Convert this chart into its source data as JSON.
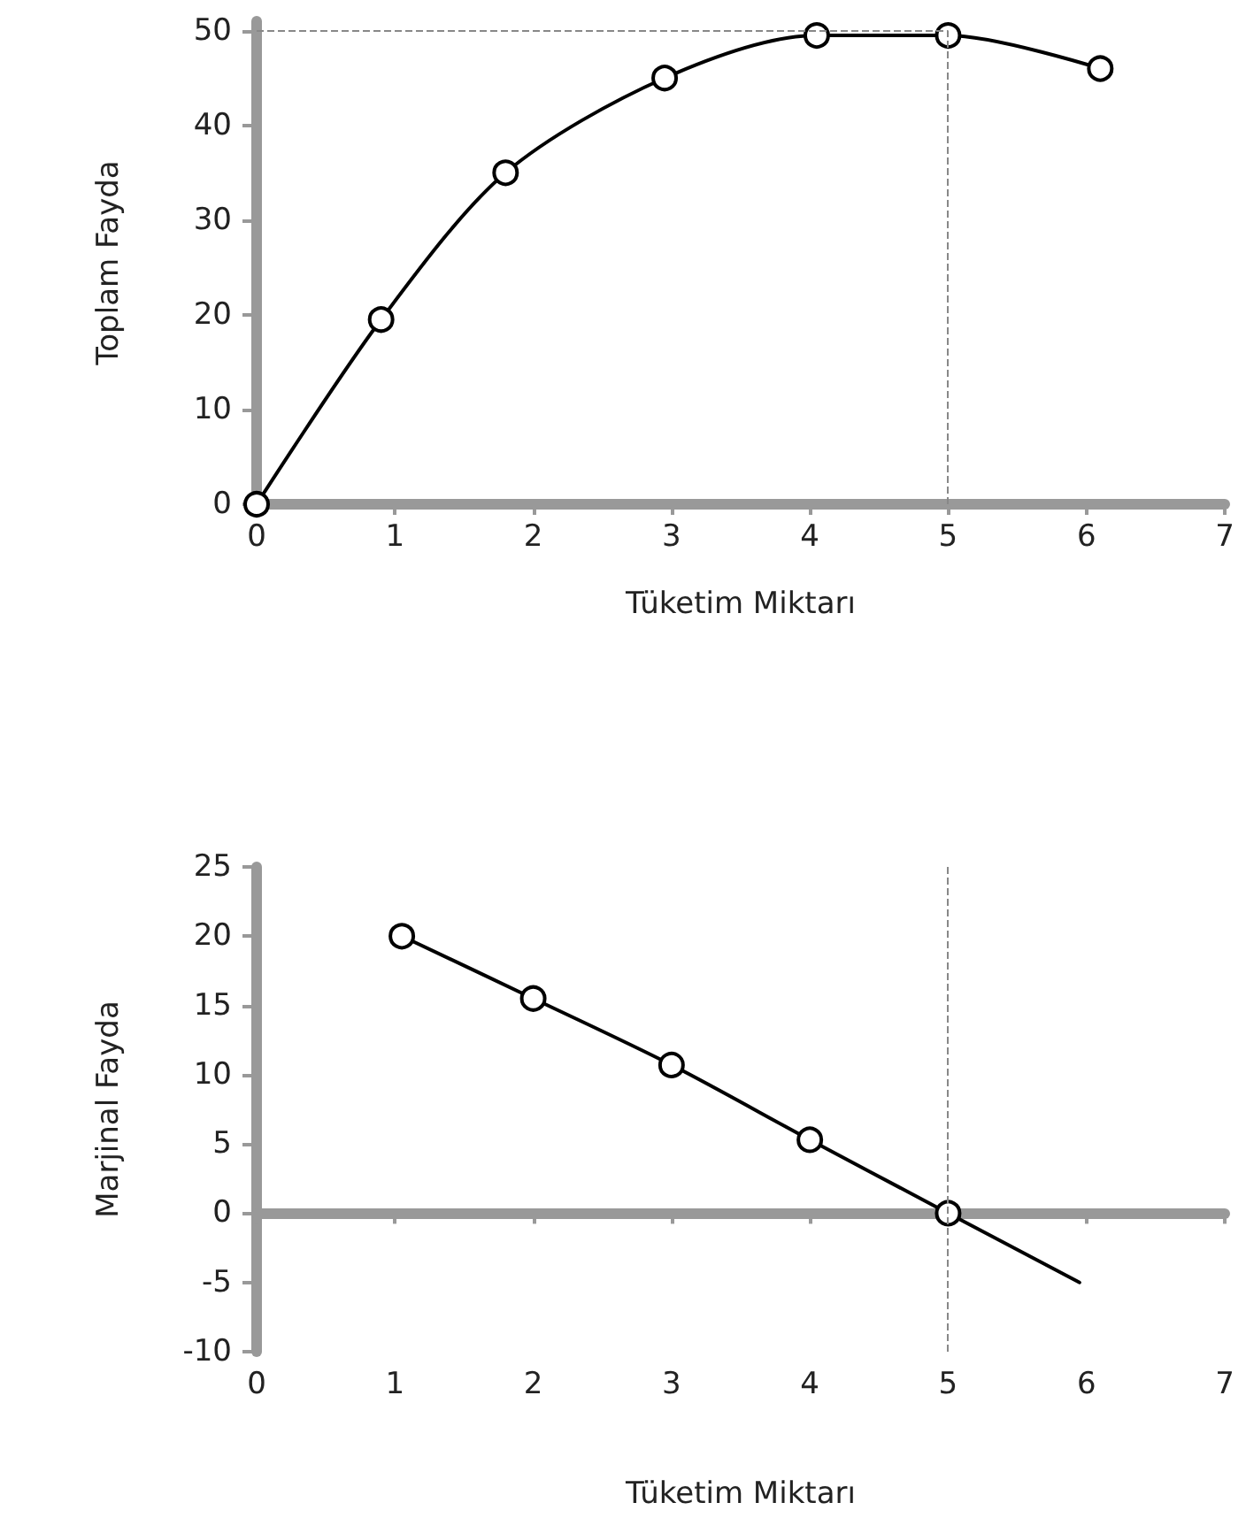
{
  "chart_data": [
    {
      "type": "line",
      "xlabel": "Tüketim Miktarı",
      "ylabel": "Toplam Fayda",
      "xlim": [
        0,
        7
      ],
      "xticks": [
        0,
        1,
        2,
        3,
        4,
        5,
        6,
        7
      ],
      "ylim": [
        0,
        51
      ],
      "yticks": [
        0,
        10,
        20,
        30,
        40,
        50
      ],
      "marker": "circle",
      "grid": false,
      "series": [
        {
          "color": "#000000",
          "x": [
            0,
            0.9,
            1.8,
            2.95,
            4.05,
            5,
            6.1
          ],
          "values": [
            0,
            19.5,
            35,
            45,
            49.5,
            49.5,
            46
          ]
        }
      ],
      "ref_lines": [
        {
          "axis": "y",
          "value": 50,
          "color": "#888888",
          "line_style": "dashed"
        },
        {
          "axis": "x",
          "value": 5,
          "color": "#888888",
          "line_style": "dashed"
        }
      ]
    },
    {
      "type": "line",
      "xlabel": "Tüketim Miktarı",
      "ylabel": "Marjinal Fayda",
      "xlim": [
        0,
        7
      ],
      "xticks": [
        0,
        1,
        2,
        3,
        4,
        5,
        6,
        7
      ],
      "ylim": [
        -10,
        25
      ],
      "yticks": [
        -10,
        -5,
        0,
        5,
        10,
        15,
        20,
        25
      ],
      "marker": "circle",
      "grid": false,
      "series": [
        {
          "color": "#000000",
          "x": [
            1.05,
            2,
            3,
            4,
            5
          ],
          "values": [
            20,
            15.5,
            10.7,
            5.3,
            0
          ]
        },
        {
          "color": "#000000",
          "marker": "none",
          "x": [
            5,
            5.95
          ],
          "values": [
            0,
            -5
          ]
        }
      ],
      "ref_lines": [
        {
          "axis": "x",
          "value": 5,
          "color": "#888888",
          "line_style": "dashed"
        }
      ]
    }
  ]
}
